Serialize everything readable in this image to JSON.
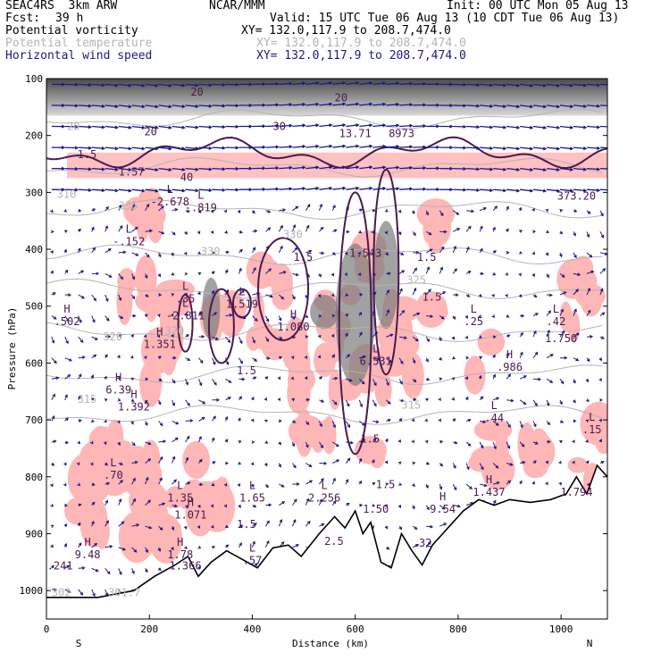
{
  "header": {
    "model_line": "SEAC4RS  3km ARW",
    "org": "NCAR/MMM",
    "init": "Init: 00 UTC Mon 05 Aug 13",
    "fcst_label": "Fcst:",
    "fcst_value": "39 h",
    "valid": "Valid: 15 UTC Tue 06 Aug 13 (10 CDT Tue 06 Aug 13)"
  },
  "fields": [
    {
      "name": "Potential vorticity",
      "xy": "XY= 132.0,117.9 to 208.7,474.0",
      "color": "#000000"
    },
    {
      "name": "Potential temperature",
      "xy": "XY= 132.0,117.9 to 208.7,474.0",
      "color": "#b4b4b4"
    },
    {
      "name": "Horizontal wind speed",
      "xy": "XY= 132.0,117.9 to 208.7,474.0",
      "color": "#1a1a8c"
    }
  ],
  "chart_data": {
    "type": "cross-section",
    "xlabel": "Distance (km)",
    "ylabel": "Pressure (hPa)",
    "xlim": [
      0,
      1090
    ],
    "ylim": [
      1050,
      100
    ],
    "x_ticks": [
      0,
      200,
      400,
      600,
      800,
      1000
    ],
    "y_ticks": [
      100,
      200,
      300,
      400,
      500,
      600,
      700,
      800,
      900,
      1000
    ],
    "endpoint_left": "S",
    "endpoint_right": "N",
    "colors": {
      "pv_contour": "#4a1a4e",
      "theta_contour": "#b4b4b4",
      "wind_vector": "#1a1a8c",
      "cloud_shading": "#ffb6b6",
      "terrain": "#000000"
    },
    "terrain": [
      [
        0,
        1012
      ],
      [
        100,
        1012
      ],
      [
        170,
        1000
      ],
      [
        210,
        975
      ],
      [
        250,
        955
      ],
      [
        275,
        940
      ],
      [
        295,
        975
      ],
      [
        320,
        950
      ],
      [
        350,
        930
      ],
      [
        380,
        945
      ],
      [
        410,
        960
      ],
      [
        440,
        925
      ],
      [
        470,
        920
      ],
      [
        495,
        940
      ],
      [
        530,
        900
      ],
      [
        560,
        870
      ],
      [
        580,
        890
      ],
      [
        600,
        860
      ],
      [
        615,
        900
      ],
      [
        630,
        880
      ],
      [
        650,
        950
      ],
      [
        670,
        960
      ],
      [
        690,
        900
      ],
      [
        710,
        930
      ],
      [
        730,
        955
      ],
      [
        750,
        920
      ],
      [
        770,
        900
      ],
      [
        790,
        880
      ],
      [
        810,
        860
      ],
      [
        840,
        840
      ],
      [
        870,
        850
      ],
      [
        900,
        840
      ],
      [
        940,
        845
      ],
      [
        980,
        840
      ],
      [
        1010,
        830
      ],
      [
        1030,
        800
      ],
      [
        1050,
        830
      ],
      [
        1070,
        780
      ],
      [
        1090,
        800
      ]
    ],
    "theta_labels": [
      {
        "x": 40,
        "p": 190,
        "text": "20"
      },
      {
        "x": 20,
        "p": 310,
        "text": "310"
      },
      {
        "x": 140,
        "p": 330,
        "text": "335"
      },
      {
        "x": 300,
        "p": 410,
        "text": "330"
      },
      {
        "x": 460,
        "p": 380,
        "text": "330"
      },
      {
        "x": 700,
        "p": 460,
        "text": "325"
      },
      {
        "x": 110,
        "p": 560,
        "text": "320"
      },
      {
        "x": 230,
        "p": 550,
        "text": "320"
      },
      {
        "x": 60,
        "p": 670,
        "text": "315"
      },
      {
        "x": 690,
        "p": 680,
        "text": "315"
      },
      {
        "x": 10,
        "p": 1010,
        "text": "302"
      },
      {
        "x": 120,
        "p": 1010,
        "text": "301.7"
      }
    ],
    "extrema": [
      {
        "x": 40,
        "p": 530,
        "kind": "H",
        "value": ".502"
      },
      {
        "x": 220,
        "p": 570,
        "kind": "H",
        "value": "1.351"
      },
      {
        "x": 140,
        "p": 650,
        "kind": "H",
        "value": "6.39"
      },
      {
        "x": 170,
        "p": 680,
        "kind": "H",
        "value": "1.392"
      },
      {
        "x": 130,
        "p": 800,
        "kind": "L",
        "value": ".70"
      },
      {
        "x": 240,
        "p": 320,
        "kind": "L",
        "value": "-2.678"
      },
      {
        "x": 160,
        "p": 390,
        "kind": "L",
        "value": "-.152"
      },
      {
        "x": 300,
        "p": 330,
        "kind": "L",
        "value": "-.819"
      },
      {
        "x": 270,
        "p": 490,
        "kind": "L",
        "value": ".35"
      },
      {
        "x": 270,
        "p": 520,
        "kind": "L",
        "value": "-2.811"
      },
      {
        "x": 380,
        "p": 500,
        "kind": "L",
        "value": "1.519"
      },
      {
        "x": 480,
        "p": 540,
        "kind": "H",
        "value": "1.080"
      },
      {
        "x": 620,
        "p": 410,
        "kind": "",
        "value": "1.543"
      },
      {
        "x": 640,
        "p": 600,
        "kind": "L",
        "value": "6.531"
      },
      {
        "x": 830,
        "p": 530,
        "kind": "L",
        "value": ".25"
      },
      {
        "x": 990,
        "p": 530,
        "kind": "L",
        "value": ".42"
      },
      {
        "x": 1000,
        "p": 560,
        "kind": "",
        "value": "1.750"
      },
      {
        "x": 900,
        "p": 610,
        "kind": "H",
        "value": ".986"
      },
      {
        "x": 870,
        "p": 700,
        "kind": "L",
        "value": ".44"
      },
      {
        "x": 1060,
        "p": 720,
        "kind": "L",
        "value": ".15"
      },
      {
        "x": 260,
        "p": 840,
        "kind": "L",
        "value": "1.35"
      },
      {
        "x": 280,
        "p": 870,
        "kind": "H",
        "value": "1.071"
      },
      {
        "x": 400,
        "p": 840,
        "kind": "L",
        "value": "1.65"
      },
      {
        "x": 540,
        "p": 840,
        "kind": "L",
        "value": "2.256"
      },
      {
        "x": 640,
        "p": 860,
        "kind": "",
        "value": "1.50"
      },
      {
        "x": 770,
        "p": 860,
        "kind": "H",
        "value": "9.54"
      },
      {
        "x": 860,
        "p": 830,
        "kind": "H",
        "value": "1.437"
      },
      {
        "x": 1030,
        "p": 830,
        "kind": "",
        "value": "1.794"
      },
      {
        "x": 80,
        "p": 940,
        "kind": "H",
        "value": "9.48"
      },
      {
        "x": 20,
        "p": 960,
        "kind": "",
        "value": "1.241"
      },
      {
        "x": 260,
        "p": 940,
        "kind": "H",
        "value": "1.78"
      },
      {
        "x": 270,
        "p": 960,
        "kind": "",
        "value": "1.366"
      },
      {
        "x": 400,
        "p": 950,
        "kind": "L",
        "value": ".57"
      },
      {
        "x": 730,
        "p": 920,
        "kind": "",
        "value": ".32"
      },
      {
        "x": 600,
        "p": 200,
        "kind": "",
        "value": "13.71"
      },
      {
        "x": 690,
        "p": 200,
        "kind": "",
        "value": "8973"
      },
      {
        "x": 1030,
        "p": 310,
        "kind": "",
        "value": "373.20"
      }
    ],
    "pv_labels": [
      {
        "x": 60,
        "p": 240,
        "text": "1.5"
      },
      {
        "x": 140,
        "p": 270,
        "text": "1.57"
      },
      {
        "x": 260,
        "p": 280,
        "text": "40"
      },
      {
        "x": 280,
        "p": 130,
        "text": "20"
      },
      {
        "x": 190,
        "p": 200,
        "text": "20"
      },
      {
        "x": 440,
        "p": 190,
        "text": "30"
      },
      {
        "x": 560,
        "p": 140,
        "text": "20"
      },
      {
        "x": 480,
        "p": 420,
        "text": "1.5"
      },
      {
        "x": 720,
        "p": 420,
        "text": "1.5"
      },
      {
        "x": 730,
        "p": 490,
        "text": "1.5"
      },
      {
        "x": 370,
        "p": 620,
        "text": "1.5"
      },
      {
        "x": 610,
        "p": 740,
        "text": "1.5"
      },
      {
        "x": 640,
        "p": 820,
        "text": "1.5"
      },
      {
        "x": 370,
        "p": 890,
        "text": "1.5"
      },
      {
        "x": 540,
        "p": 920,
        "text": "2.5"
      }
    ]
  }
}
